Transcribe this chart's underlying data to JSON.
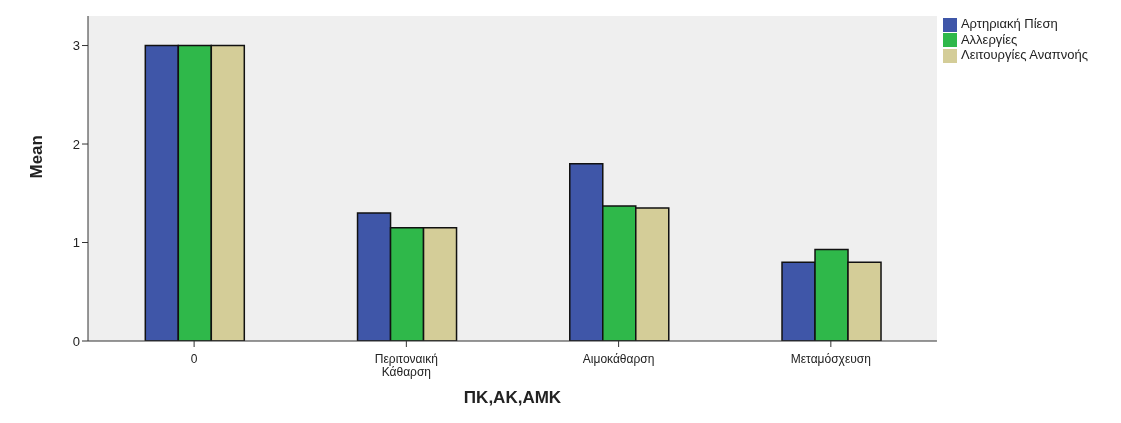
{
  "chart_data": {
    "type": "bar",
    "xlabel": "ΠΚ,ΑΚ,ΑΜΚ",
    "ylabel": "Mean",
    "categories": [
      "0",
      "Περιτοναική Κάθαρση",
      "Αιμοκάθαρση",
      "Μεταμόσχευση"
    ],
    "series": [
      {
        "name": "Αρτηριακή Πίεση",
        "color": "#3f56a8",
        "values": [
          3,
          1.3,
          1.8,
          0.8
        ]
      },
      {
        "name": "Αλλεργίες",
        "color": "#2fb84a",
        "values": [
          3,
          1.15,
          1.37,
          0.93
        ]
      },
      {
        "name": "Λειτουργίες Αναπνοής",
        "color": "#d4cd98",
        "values": [
          3,
          1.15,
          1.35,
          0.8
        ]
      }
    ],
    "ylim": [
      0,
      3.3
    ],
    "yticks": [
      0,
      1,
      2,
      3
    ],
    "grid": false,
    "legend": "top right"
  }
}
